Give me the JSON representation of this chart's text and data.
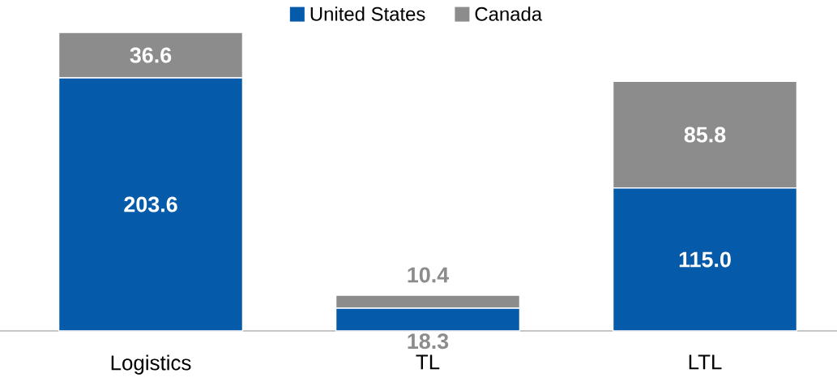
{
  "chart_data": {
    "type": "bar",
    "stacked": true,
    "categories": [
      "Logistics",
      "TL",
      "LTL"
    ],
    "series": [
      {
        "name": "United States",
        "color": "#065aaa",
        "values": [
          203.6,
          18.3,
          115.0
        ],
        "value_labels": [
          "203.6",
          "18.3",
          "115.0"
        ]
      },
      {
        "name": "Canada",
        "color": "#8c8c8c",
        "values": [
          36.6,
          10.4,
          85.8
        ],
        "value_labels": [
          "36.6",
          "10.4",
          "85.8"
        ]
      }
    ],
    "tick_labels": "x",
    "legend": "top",
    "grid": false
  }
}
